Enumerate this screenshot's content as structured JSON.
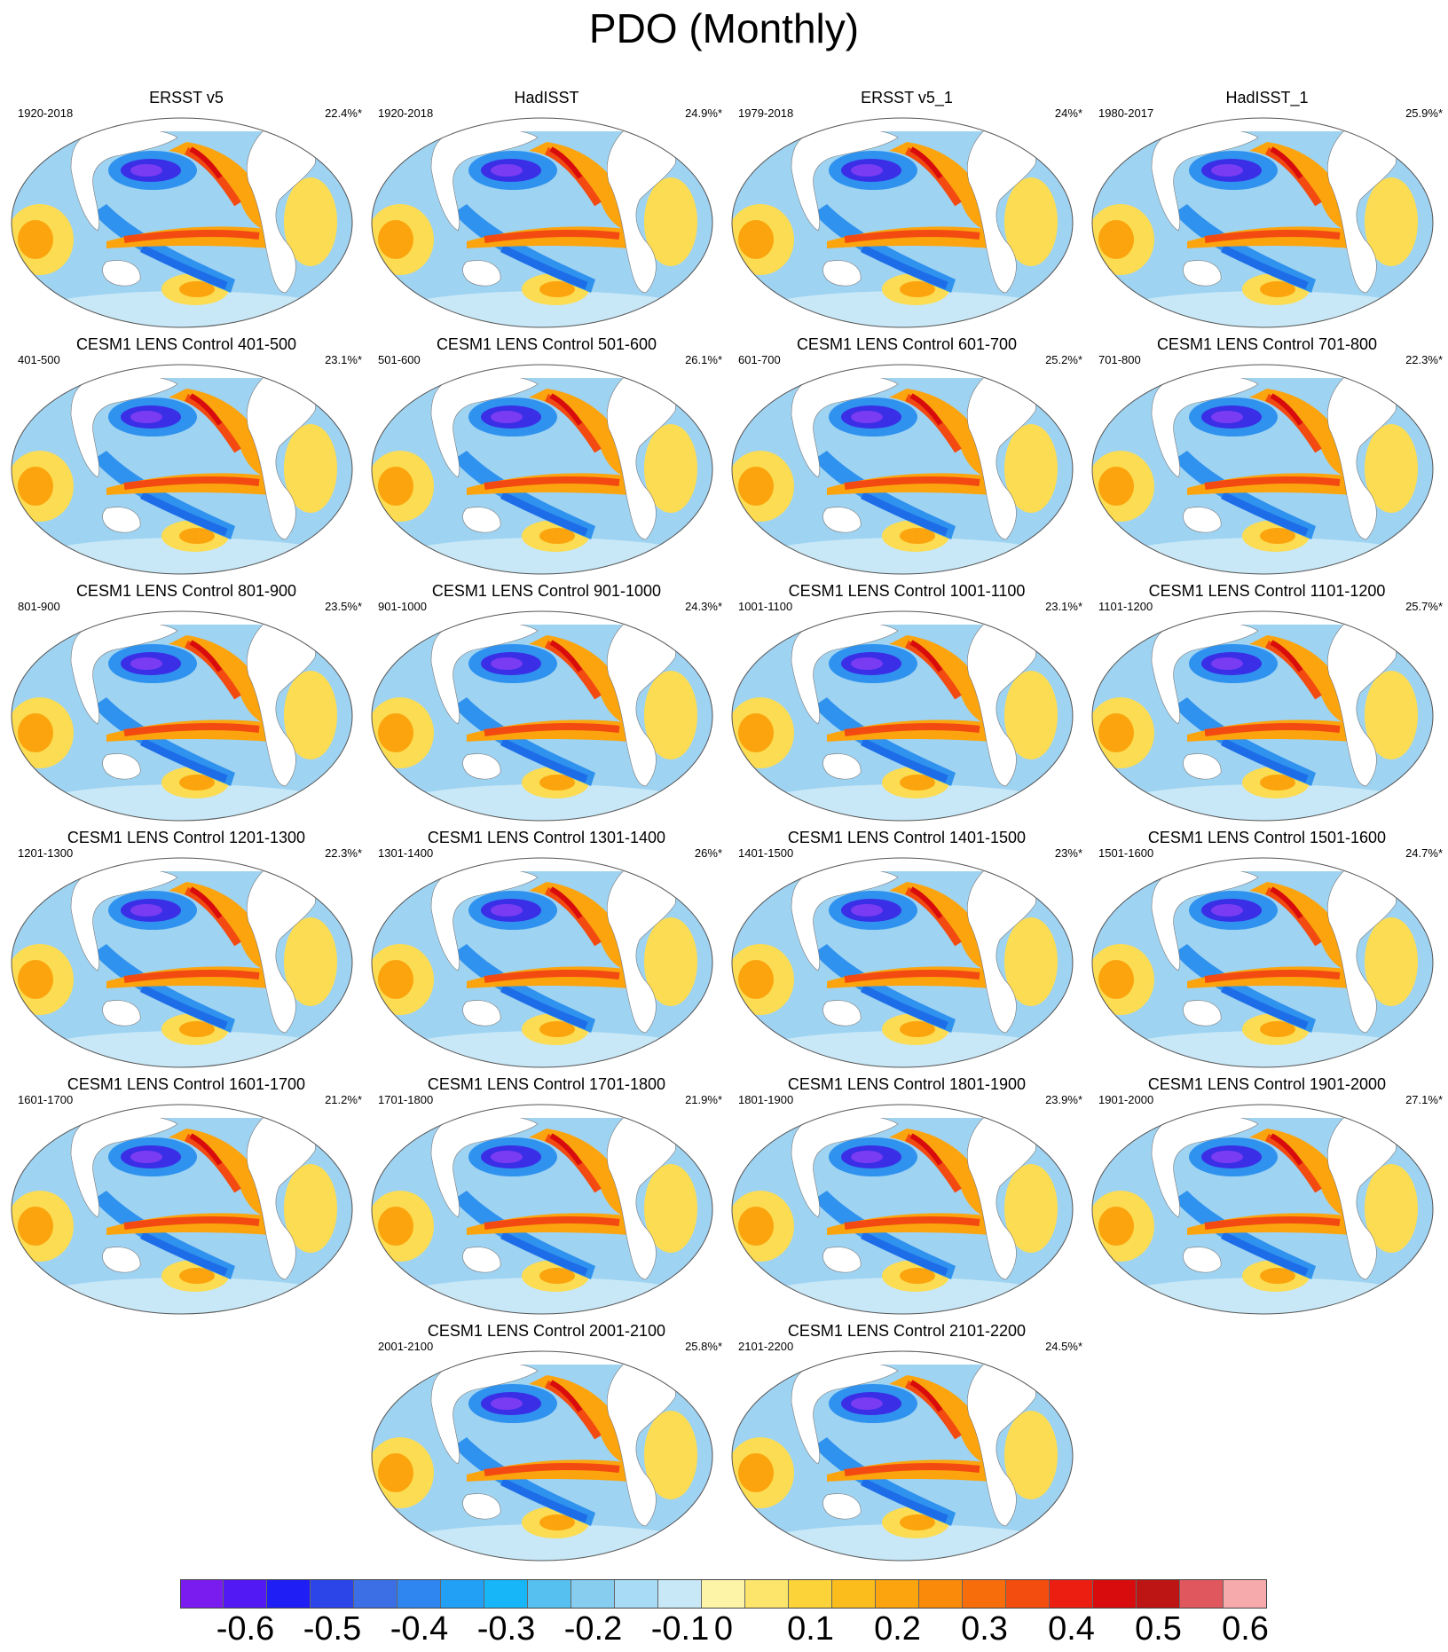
{
  "title": "PDO (Monthly)",
  "panels": [
    {
      "title": "ERSST v5",
      "years": "1920-2018",
      "pct": "22.4%*"
    },
    {
      "title": "HadISST",
      "years": "1920-2018",
      "pct": "24.9%*"
    },
    {
      "title": "ERSST v5_1",
      "years": "1979-2018",
      "pct": "24%*"
    },
    {
      "title": "HadISST_1",
      "years": "1980-2017",
      "pct": "25.9%*"
    },
    {
      "title": "CESM1 LENS Control 401-500",
      "years": "401-500",
      "pct": "23.1%*"
    },
    {
      "title": "CESM1 LENS Control 501-600",
      "years": "501-600",
      "pct": "26.1%*"
    },
    {
      "title": "CESM1 LENS Control 601-700",
      "years": "601-700",
      "pct": "25.2%*"
    },
    {
      "title": "CESM1 LENS Control 701-800",
      "years": "701-800",
      "pct": "22.3%*"
    },
    {
      "title": "CESM1 LENS Control 801-900",
      "years": "801-900",
      "pct": "23.5%*"
    },
    {
      "title": "CESM1 LENS Control 901-1000",
      "years": "901-1000",
      "pct": "24.3%*"
    },
    {
      "title": "CESM1 LENS Control 1001-1100",
      "years": "1001-1100",
      "pct": "23.1%*"
    },
    {
      "title": "CESM1 LENS Control 1101-1200",
      "years": "1101-1200",
      "pct": "25.7%*"
    },
    {
      "title": "CESM1 LENS Control 1201-1300",
      "years": "1201-1300",
      "pct": "22.3%*"
    },
    {
      "title": "CESM1 LENS Control 1301-1400",
      "years": "1301-1400",
      "pct": "26%*"
    },
    {
      "title": "CESM1 LENS Control 1401-1500",
      "years": "1401-1500",
      "pct": "23%*"
    },
    {
      "title": "CESM1 LENS Control 1501-1600",
      "years": "1501-1600",
      "pct": "24.7%*"
    },
    {
      "title": "CESM1 LENS Control 1601-1700",
      "years": "1601-1700",
      "pct": "21.2%*"
    },
    {
      "title": "CESM1 LENS Control 1701-1800",
      "years": "1701-1800",
      "pct": "21.9%*"
    },
    {
      "title": "CESM1 LENS Control 1801-1900",
      "years": "1801-1900",
      "pct": "23.9%*"
    },
    {
      "title": "CESM1 LENS Control 1901-2000",
      "years": "1901-2000",
      "pct": "27.1%*"
    },
    {
      "title": "CESM1 LENS Control 2001-2100",
      "years": "2001-2100",
      "pct": "25.8%*"
    },
    {
      "title": "CESM1 LENS Control 2101-2200",
      "years": "2101-2200",
      "pct": "24.5%*"
    }
  ],
  "colorbar": {
    "colors": [
      "#7a1cf0",
      "#5319f5",
      "#1e1ef5",
      "#2b45e8",
      "#3c6fe6",
      "#2f86f0",
      "#22a0f5",
      "#16b6f8",
      "#56c1f0",
      "#86cdf0",
      "#a8dbf5",
      "#c8e8f7",
      "#fdf4a8",
      "#fce56a",
      "#fcd43a",
      "#fbbd1c",
      "#fba40e",
      "#f98a0a",
      "#f76d0c",
      "#f44d10",
      "#ec1e12",
      "#d80c0c",
      "#bd1414",
      "#e0585e",
      "#f7aaac"
    ],
    "labels": [
      "-0.6",
      "-0.5",
      "-0.4",
      "-0.3",
      "-0.2",
      "-0.1",
      "0",
      "0.1",
      "0.2",
      "0.3",
      "0.4",
      "0.5",
      "0.6"
    ]
  },
  "palette": {
    "strong_neg": "#3a2ee6",
    "deep_neg": "#7a3cf2",
    "mid_neg": "#2f92ee",
    "light_neg": "#9fd3f2",
    "pale_neg": "#c8e8f7",
    "pale_pos": "#fdf4a8",
    "light_pos": "#fcdc52",
    "mid_pos": "#fba40e",
    "strong_pos": "#f24a10",
    "deep_pos": "#d80c0c",
    "land": "#ffffff"
  }
}
